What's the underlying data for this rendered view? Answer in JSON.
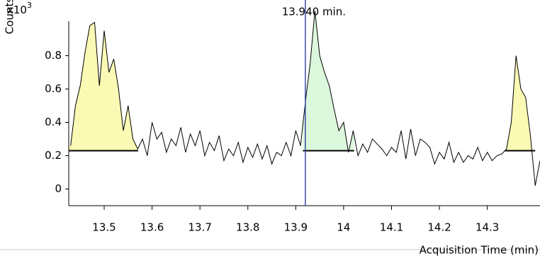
{
  "chart_data": {
    "type": "line",
    "y_label": "Counts",
    "y_multiplier": "x10",
    "y_multiplier_exponent": "3",
    "x_label": "Acquisition Time (min)",
    "annotation": {
      "text": "13.940 min.",
      "x": 13.92,
      "color": "#3a4aa8"
    },
    "x": [
      13.43,
      13.44,
      13.45,
      13.46,
      13.47,
      13.48,
      13.49,
      13.5,
      13.51,
      13.52,
      13.53,
      13.54,
      13.55,
      13.56,
      13.57,
      13.58,
      13.59,
      13.6,
      13.61,
      13.62,
      13.63,
      13.64,
      13.65,
      13.66,
      13.67,
      13.68,
      13.69,
      13.7,
      13.71,
      13.72,
      13.73,
      13.74,
      13.75,
      13.76,
      13.77,
      13.78,
      13.79,
      13.8,
      13.81,
      13.82,
      13.83,
      13.84,
      13.85,
      13.86,
      13.87,
      13.88,
      13.89,
      13.9,
      13.91,
      13.92,
      13.93,
      13.94,
      13.95,
      13.96,
      13.97,
      13.98,
      13.99,
      14,
      14.01,
      14.02,
      14.03,
      14.04,
      14.05,
      14.06,
      14.07,
      14.08,
      14.09,
      14.1,
      14.11,
      14.12,
      14.13,
      14.14,
      14.15,
      14.16,
      14.17,
      14.18,
      14.19,
      14.2,
      14.21,
      14.22,
      14.23,
      14.24,
      14.25,
      14.26,
      14.27,
      14.28,
      14.29,
      14.3,
      14.31,
      14.32,
      14.33,
      14.34,
      14.35,
      14.36,
      14.37,
      14.38,
      14.39,
      14.4,
      14.41
    ],
    "series": [
      {
        "color": "#000000",
        "values": [
          0.26,
          0.5,
          0.62,
          0.82,
          0.98,
          1.0,
          0.62,
          0.95,
          0.7,
          0.78,
          0.6,
          0.35,
          0.5,
          0.3,
          0.24,
          0.3,
          0.2,
          0.4,
          0.3,
          0.34,
          0.22,
          0.3,
          0.26,
          0.37,
          0.22,
          0.33,
          0.26,
          0.35,
          0.2,
          0.28,
          0.23,
          0.32,
          0.17,
          0.24,
          0.2,
          0.28,
          0.16,
          0.25,
          0.19,
          0.27,
          0.18,
          0.26,
          0.15,
          0.22,
          0.2,
          0.28,
          0.2,
          0.35,
          0.26,
          0.52,
          0.75,
          1.07,
          0.8,
          0.7,
          0.62,
          0.48,
          0.35,
          0.4,
          0.22,
          0.35,
          0.2,
          0.27,
          0.22,
          0.3,
          0.27,
          0.24,
          0.2,
          0.25,
          0.22,
          0.35,
          0.18,
          0.36,
          0.2,
          0.3,
          0.28,
          0.25,
          0.15,
          0.22,
          0.18,
          0.28,
          0.16,
          0.22,
          0.16,
          0.2,
          0.18,
          0.25,
          0.17,
          0.22,
          0.17,
          0.2,
          0.21,
          0.24,
          0.4,
          0.8,
          0.6,
          0.55,
          0.32,
          0.02,
          0.17
        ]
      }
    ],
    "peaks": [
      {
        "start": 13.426,
        "end": 13.571,
        "baseline": 0.23,
        "color": "#fafab4"
      },
      {
        "start": 13.915,
        "end": 14.022,
        "baseline": 0.23,
        "color": "#dcf8dc"
      },
      {
        "start": 14.337,
        "end": 14.4,
        "baseline": 0.23,
        "color": "#fafab4"
      }
    ],
    "xlim": [
      13.426,
      14.41
    ],
    "ylim": [
      -0.1,
      1.134
    ],
    "xticks": [
      13.5,
      13.6,
      13.7,
      13.8,
      13.9,
      14,
      14.1,
      14.2,
      14.3
    ],
    "yticks": [
      0,
      0.2,
      0.4,
      0.6,
      0.8
    ]
  }
}
